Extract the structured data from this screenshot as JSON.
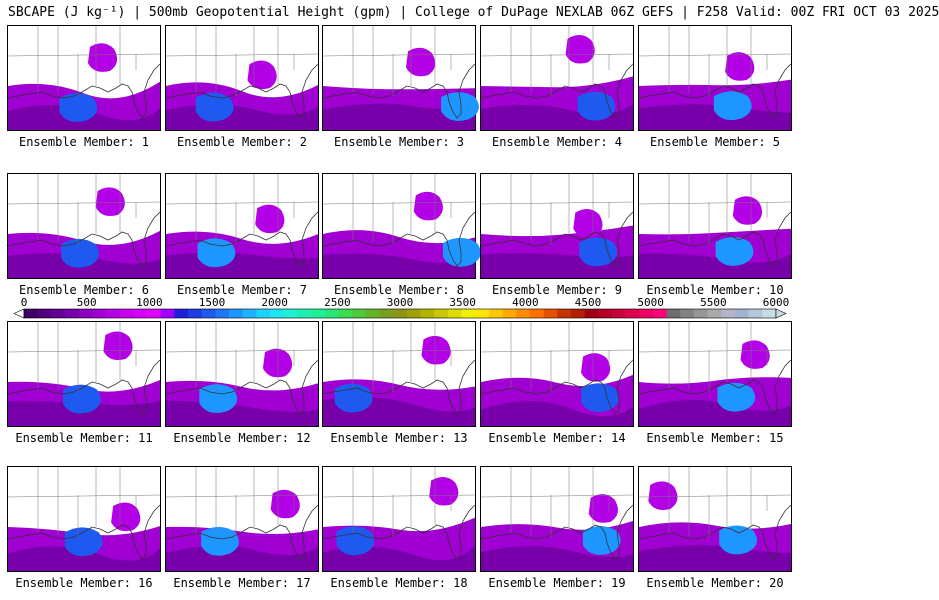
{
  "title": "SBCAPE (J kg⁻¹) | 500mb Geopotential Height (gpm) | College of DuPage NEXLAB 06Z GEFS | F258 Valid: 00Z FRI OCT 03 2025",
  "colorbar": {
    "tick_labels": [
      "0",
      "500",
      "1000",
      "1500",
      "2000",
      "2500",
      "3000",
      "3500",
      "4000",
      "4500",
      "5000",
      "5500",
      "6000"
    ],
    "range": [
      0,
      6000
    ],
    "step": 125,
    "colors": [
      "#ffffff",
      "#3c0064",
      "#50007d",
      "#640096",
      "#7800aa",
      "#8c00be",
      "#a000d2",
      "#b400e6",
      "#c800f0",
      "#d400ff",
      "#e000ff",
      "#a000ff",
      "#1e1edc",
      "#1e3ce6",
      "#1e5af0",
      "#1e78f5",
      "#1e96ff",
      "#1eb4ff",
      "#1ed2ff",
      "#1ee6f0",
      "#1ef0d2",
      "#1ef0b4",
      "#1ef096",
      "#28e678",
      "#3cdc50",
      "#50c83c",
      "#64b428",
      "#78a01e",
      "#8c9614",
      "#a0a00a",
      "#b4b400",
      "#c8c800",
      "#dcdc00",
      "#f0f000",
      "#ffe600",
      "#ffc800",
      "#ffaa00",
      "#ff8c00",
      "#ff6e00",
      "#e65000",
      "#c83200",
      "#b41e00",
      "#a00014",
      "#b40028",
      "#c8003c",
      "#dc0050",
      "#f00064",
      "#ff0078",
      "#6e6e6e",
      "#828282",
      "#969696",
      "#aaaaaa",
      "#b4b4c8",
      "#a0b4d2",
      "#b4c8dc",
      "#c8dce6"
    ]
  },
  "members": [
    {
      "label": "Ensemble Member: 1"
    },
    {
      "label": "Ensemble Member: 2"
    },
    {
      "label": "Ensemble Member: 3"
    },
    {
      "label": "Ensemble Member: 4"
    },
    {
      "label": "Ensemble Member: 5"
    },
    {
      "label": "Ensemble Member: 6"
    },
    {
      "label": "Ensemble Member: 7"
    },
    {
      "label": "Ensemble Member: 8"
    },
    {
      "label": "Ensemble Member: 9"
    },
    {
      "label": "Ensemble Member: 10"
    },
    {
      "label": "Ensemble Member: 11"
    },
    {
      "label": "Ensemble Member: 12"
    },
    {
      "label": "Ensemble Member: 13"
    },
    {
      "label": "Ensemble Member: 14"
    },
    {
      "label": "Ensemble Member: 15"
    },
    {
      "label": "Ensemble Member: 16"
    },
    {
      "label": "Ensemble Member: 17"
    },
    {
      "label": "Ensemble Member: 18"
    },
    {
      "label": "Ensemble Member: 19"
    },
    {
      "label": "Ensemble Member: 20"
    }
  ]
}
